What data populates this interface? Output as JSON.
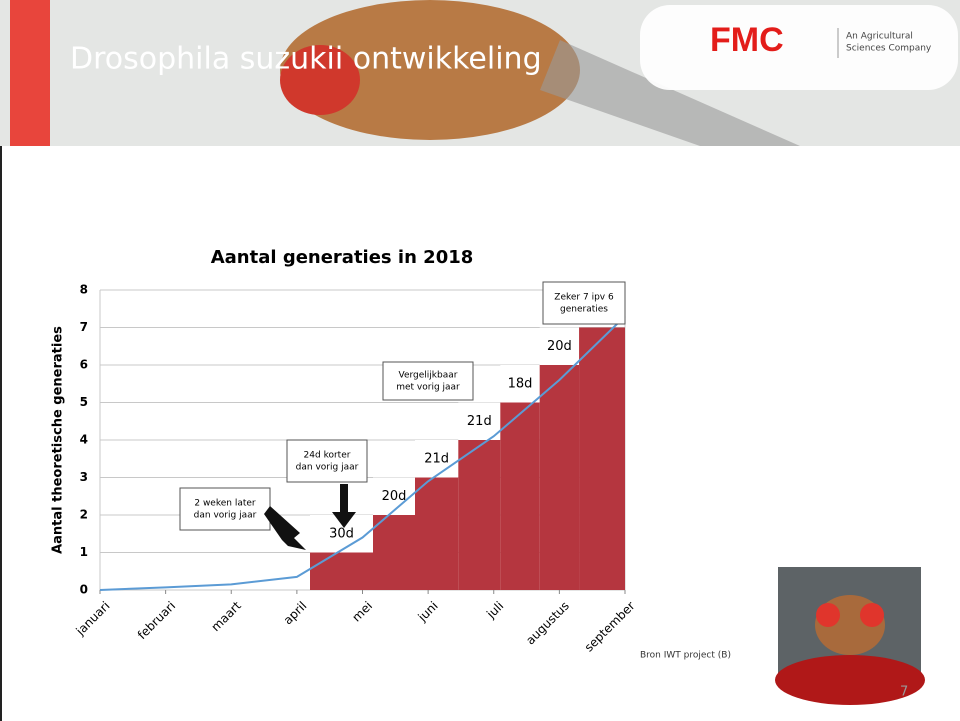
{
  "slide": {
    "title": "Drosophila suzukii ontwikkeling",
    "logo": "FMC",
    "logo_tagline": [
      "An Agricultural",
      "Sciences Company"
    ],
    "source": "Bron IWT project (B)",
    "page": "7"
  },
  "chart_data": {
    "type": "line",
    "title": "Aantal generaties in 2018",
    "y_label": "Aantal theoretische generaties",
    "xlim": [
      0,
      8
    ],
    "xticks": [
      {
        "value": 0,
        "label": "januari"
      },
      {
        "value": 1,
        "label": "februari"
      },
      {
        "value": 2,
        "label": "maart"
      },
      {
        "value": 3,
        "label": "april"
      },
      {
        "value": 4,
        "label": "mei"
      },
      {
        "value": 5,
        "label": "juni"
      },
      {
        "value": 6,
        "label": "juli"
      },
      {
        "value": 7,
        "label": "augustus"
      },
      {
        "value": 8,
        "label": "september"
      }
    ],
    "ylim": [
      0,
      8
    ],
    "yticks": [
      0,
      1,
      2,
      3,
      4,
      5,
      6,
      7,
      8
    ],
    "grid": true,
    "series": [
      {
        "color": "#5b9bd5",
        "x": [
          0,
          1,
          2,
          3,
          4,
          5,
          6,
          7,
          8
        ],
        "values": [
          0,
          0.07,
          0.15,
          0.35,
          1.4,
          2.9,
          4.1,
          5.6,
          7.3
        ]
      }
    ],
    "steps": {
      "color": "#b5363f",
      "x": [
        3.2,
        4.16,
        4.8,
        5.46,
        6.1,
        6.7,
        7.3
      ],
      "values": [
        1,
        2,
        3,
        4,
        5,
        6,
        7
      ],
      "labels": [
        "30d",
        "20d",
        "21d",
        "21d",
        "18d",
        "20d",
        null
      ]
    },
    "annotations": [
      [
        "2 weken later",
        "dan vorig jaar"
      ],
      [
        "24d korter",
        "dan vorig jaar"
      ],
      [
        "Vergelijkbaar",
        "met vorig jaar"
      ],
      [
        "Zeker 7 ipv 6",
        "generaties"
      ]
    ]
  }
}
